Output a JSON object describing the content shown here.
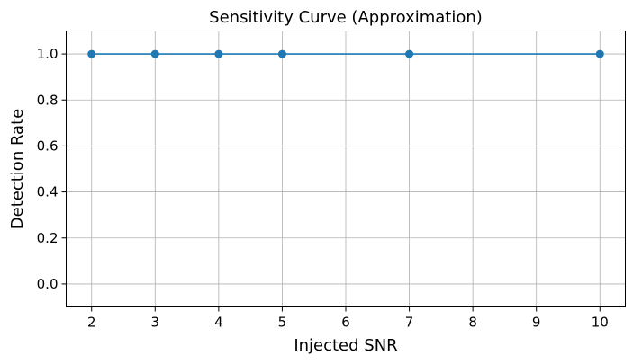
{
  "chart_data": {
    "type": "line",
    "title": "Sensitivity Curve (Approximation)",
    "xlabel": "Injected SNR",
    "ylabel": "Detection Rate",
    "x": [
      2,
      3,
      4,
      5,
      7,
      10
    ],
    "series": [
      {
        "values": [
          1.0,
          1.0,
          1.0,
          1.0,
          1.0,
          1.0
        ]
      }
    ],
    "xlim": [
      1.6,
      10.4
    ],
    "ylim": [
      -0.1,
      1.1
    ],
    "xticks": [
      "2",
      "3",
      "4",
      "5",
      "6",
      "7",
      "8",
      "9",
      "10"
    ],
    "yticks": [
      "0.0",
      "0.2",
      "0.4",
      "0.6",
      "0.8",
      "1.0"
    ],
    "grid": true,
    "line_color": "#1f77b4",
    "marker": "circle"
  }
}
